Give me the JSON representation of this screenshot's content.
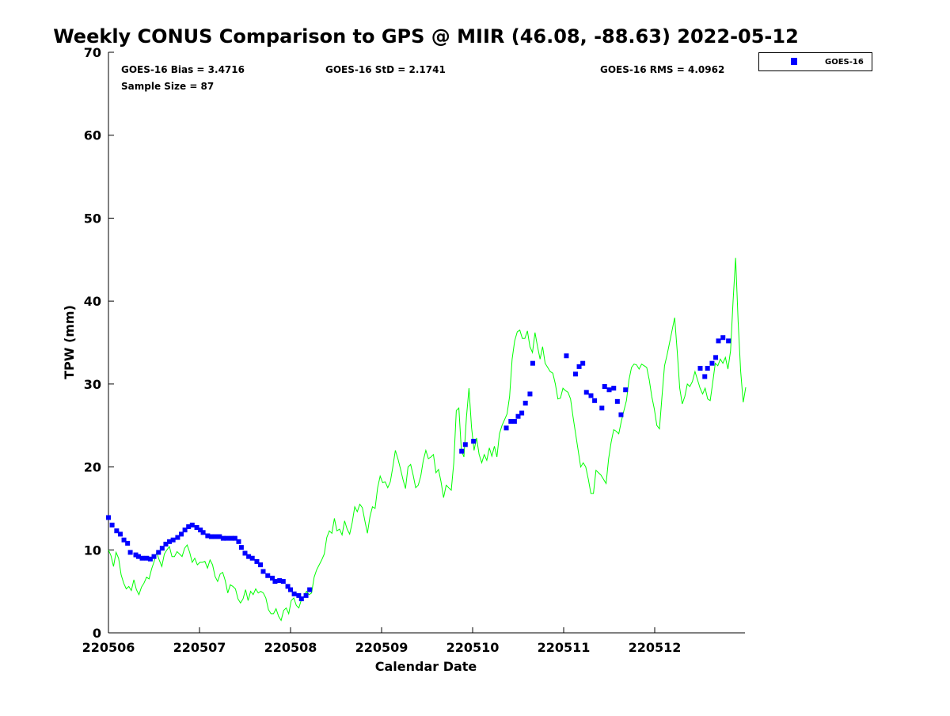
{
  "chart_data": {
    "type": "scatter+line",
    "title": "Weekly CONUS Comparison to GPS @ MIIR (46.08, -88.63) 2022-05-12",
    "xlabel": "Calendar Date",
    "ylabel": "TPW (mm)",
    "xlim_days": [
      0,
      7
    ],
    "ylim": [
      0,
      70
    ],
    "x_tick_labels": [
      "220506",
      "220507",
      "220508",
      "220509",
      "220510",
      "220511",
      "220512"
    ],
    "y_ticks": [
      0,
      10,
      20,
      30,
      40,
      50,
      60,
      70
    ],
    "grid": false,
    "legend_position": "outside-top-right",
    "stats": {
      "bias": "GOES-16 Bias = 3.4716",
      "std": "GOES-16 StD = 2.1741",
      "rms": "GOES-16 RMS = 4.0962",
      "sample": "Sample Size = 87"
    },
    "colors": {
      "goes": "#0000ff",
      "gps": "#00ff00"
    },
    "series": [
      {
        "name": "GOES-16",
        "kind": "scatter",
        "x_days": [
          0,
          0.04,
          0.09,
          0.13,
          0.17,
          0.21,
          0.24,
          0.3,
          0.33,
          0.37,
          0.42,
          0.46,
          0.5,
          0.55,
          0.59,
          0.63,
          0.67,
          0.71,
          0.76,
          0.8,
          0.84,
          0.88,
          0.92,
          0.97,
          1.01,
          1.04,
          1.09,
          1.13,
          1.17,
          1.22,
          1.26,
          1.3,
          1.35,
          1.39,
          1.43,
          1.46,
          1.5,
          1.54,
          1.58,
          1.63,
          1.67,
          1.7,
          1.75,
          1.8,
          1.83,
          1.88,
          1.92,
          1.97,
          2.0,
          2.04,
          2.09,
          2.12,
          2.17,
          2.21,
          3.88,
          3.92,
          4.01,
          4.37,
          4.42,
          4.46,
          4.5,
          4.54,
          4.58,
          4.63,
          4.66,
          5.03,
          5.13,
          5.17,
          5.21,
          5.25,
          5.3,
          5.34,
          5.42,
          5.45,
          5.5,
          5.55,
          5.59,
          5.63,
          5.68,
          6.5,
          6.55,
          6.58,
          6.63,
          6.67,
          6.7,
          6.75,
          6.81
        ],
        "values": [
          13.9,
          13.0,
          12.3,
          11.9,
          11.2,
          10.8,
          9.7,
          9.4,
          9.2,
          9.0,
          9.0,
          8.9,
          9.2,
          9.7,
          10.2,
          10.7,
          11.0,
          11.2,
          11.5,
          11.9,
          12.4,
          12.8,
          13.0,
          12.7,
          12.4,
          12.1,
          11.7,
          11.6,
          11.6,
          11.6,
          11.4,
          11.4,
          11.4,
          11.4,
          11.0,
          10.3,
          9.6,
          9.2,
          9.0,
          8.6,
          8.2,
          7.4,
          6.9,
          6.6,
          6.2,
          6.3,
          6.2,
          5.6,
          5.2,
          4.7,
          4.5,
          4.1,
          4.5,
          5.2,
          21.9,
          22.7,
          23.1,
          24.7,
          25.5,
          25.5,
          26.1,
          26.5,
          27.7,
          28.8,
          32.5,
          33.4,
          31.2,
          32.1,
          32.5,
          29.0,
          28.6,
          28.0,
          27.1,
          29.7,
          29.3,
          29.5,
          27.9,
          26.3,
          29.3,
          31.9,
          30.9,
          31.9,
          32.5,
          33.2,
          35.2,
          35.6,
          35.2
        ]
      },
      {
        "name": "GPS",
        "kind": "line",
        "x_start_days": 0,
        "x_end_days": 7,
        "values": [
          10,
          9.3,
          8,
          9.7,
          9,
          7,
          6,
          5.3,
          5.6,
          5.1,
          6.4,
          5.2,
          4.6,
          5.5,
          6.0,
          6.7,
          6.5,
          7.7,
          8.6,
          9.7,
          8.8,
          8,
          9.5,
          10,
          10.4,
          9.2,
          9.2,
          9.8,
          9.5,
          9.2,
          10.2,
          10.6,
          9.7,
          8.5,
          9,
          8.2,
          8.5,
          8.5,
          8.6,
          7.8,
          8.8,
          8.2,
          6.8,
          6.2,
          7.1,
          7.3,
          6.3,
          4.8,
          5.8,
          5.6,
          5.3,
          4.1,
          3.6,
          4.1,
          5.2,
          3.9,
          5.0,
          4.6,
          5.3,
          4.8,
          5.0,
          4.8,
          4.2,
          2.8,
          2.3,
          2.3,
          2.9,
          2.0,
          1.5,
          2.7,
          3.0,
          2.3,
          3.9,
          4.2,
          3.3,
          3.0,
          4.0,
          4.4,
          5.0,
          4.6,
          4.8,
          6.7,
          7.6,
          8.2,
          8.8,
          9.5,
          11.5,
          12.3,
          12.0,
          13.8,
          12.3,
          12.5,
          11.8,
          13.5,
          12.5,
          11.9,
          13.3,
          15.2,
          14.6,
          15.5,
          15.1,
          13.5,
          12.0,
          14.0,
          15.2,
          15.0,
          17.5,
          18.9,
          18.1,
          18.2,
          17.5,
          18.2,
          20.0,
          22.0,
          21.0,
          19.8,
          18.5,
          17.4,
          20.0,
          20.3,
          19.0,
          17.5,
          17.8,
          18.9,
          20.8,
          22.0,
          21.0,
          21.2,
          21.5,
          19.3,
          19.7,
          18.2,
          16.3,
          17.8,
          17.5,
          17.2,
          20.5,
          26.8,
          27.1,
          22.0,
          21.2,
          26.0,
          29.5,
          24.8,
          22.0,
          23.5,
          21.5,
          20.5,
          21.5,
          20.8,
          22.3,
          21.3,
          22.5,
          21.2,
          24.0,
          25.0,
          25.7,
          26.4,
          28.5,
          33.0,
          35.2,
          36.3,
          36.5,
          35.5,
          35.5,
          36.4,
          34.5,
          33.8,
          36.2,
          34.5,
          33.0,
          34.5,
          32.5,
          32.0,
          31.5,
          31.3,
          30.0,
          28.2,
          28.3,
          29.5,
          29.2,
          29.0,
          28.2,
          26.0,
          24.0,
          22.0,
          20.0,
          20.5,
          20.0,
          18.5,
          16.8,
          16.8,
          19.6,
          19.3,
          19.0,
          18.5,
          18.0,
          21.0,
          23.0,
          24.5,
          24.3,
          24.0,
          25.5,
          26.8,
          28.0,
          30.5,
          32.0,
          32.4,
          32.3,
          31.8,
          32.4,
          32.2,
          32.0,
          30.5,
          28.5,
          27.0,
          25.0,
          24.6,
          28.5,
          32.2,
          33.5,
          35.0,
          36.5,
          38.0,
          34.0,
          29.5,
          27.6,
          28.5,
          30.0,
          29.7,
          30.3,
          31.5,
          30.5,
          29.5,
          28.8,
          29.5,
          28.2,
          28.0,
          30.2,
          32.5,
          32.2,
          33.0,
          32.5,
          33.2,
          31.8,
          34.0,
          40.0,
          45.2,
          37.5,
          31.5,
          27.8,
          29.6
        ]
      }
    ]
  }
}
